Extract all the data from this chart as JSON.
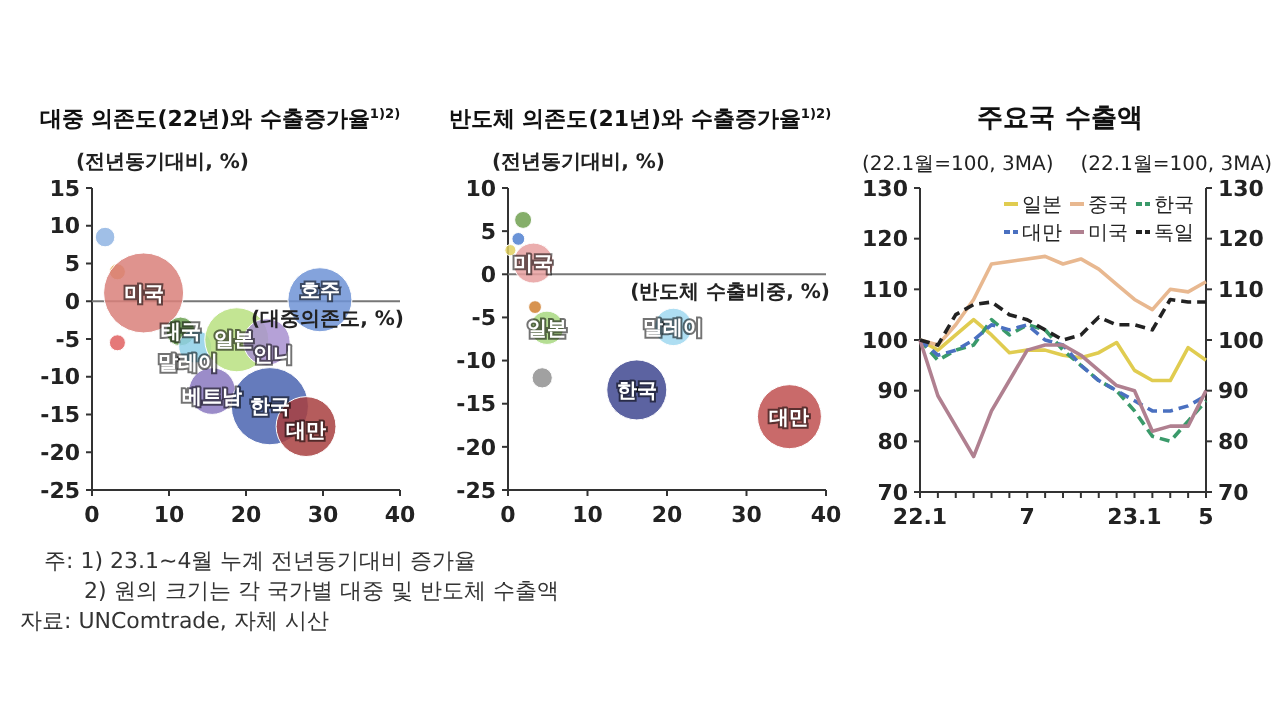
{
  "chart_data": [
    {
      "type": "bubble",
      "title": "대중 의존도(22년)와 수출증가율$^{1)2)}$",
      "ylabel": "(전년동기대비, %)",
      "xlabel": "(대중의존도, %)",
      "xlim": [
        0,
        40
      ],
      "xticks": [
        0,
        10,
        20,
        30,
        40
      ],
      "ylim": [
        -25,
        15
      ],
      "yticks": [
        15,
        10,
        5,
        0,
        -5,
        -10,
        -15,
        -20,
        -25
      ],
      "ref_lines": [
        {
          "axis": "y",
          "value": 0,
          "color": "#777777"
        }
      ],
      "series": [
        {
          "x": [
            1.7,
            3.3,
            6.7,
            3.3,
            11.5,
            13.4,
            18.8,
            22.7,
            29.6,
            15.6,
            23.1,
            27.8
          ],
          "values": [
            8.5,
            3.9,
            1.1,
            -5.5,
            -4,
            -6,
            -5.1,
            -5.4,
            0.2,
            -11.9,
            -13.9,
            -16.6
          ],
          "sizes": [
            0.06,
            0.04,
            1,
            0.04,
            0.13,
            0.17,
            0.64,
            0.34,
            0.64,
            0.34,
            0.93,
            0.56
          ],
          "colors": [
            "#8fb4e3",
            "#e8a040",
            "#d9807a",
            "#e06060",
            "#6aa050",
            "#8fd0e8",
            "#b8e080",
            "#a890d0",
            "#6f93d6",
            "#8a78c0",
            "#4a64b0",
            "#a84040"
          ]
        }
      ],
      "annotations": [
        {
          "text": "미국",
          "x": 6.7,
          "y": 1.1
        },
        {
          "text": "태국",
          "x": 11.5,
          "y": -4
        },
        {
          "text": "말레이",
          "x": 12.5,
          "y": -8
        },
        {
          "text": "일본",
          "x": 18.5,
          "y": -5
        },
        {
          "text": "인니",
          "x": 23.5,
          "y": -7
        },
        {
          "text": "호주",
          "x": 29.6,
          "y": 1.5
        },
        {
          "text": "베트남",
          "x": 15.6,
          "y": -12.5
        },
        {
          "text": "한국",
          "x": 23.1,
          "y": -13.9
        },
        {
          "text": "대만",
          "x": 27.8,
          "y": -17
        },
        "주: 1) 23.1~4월 누계 전년동기대비 증가율",
        "2) 원의 크기는 각 국가별 대중 및 반도체 수출액",
        "자료: UNComtrade, 자체 시산"
      ]
    },
    {
      "type": "bubble",
      "title": "반도체 의존도(21년)와 수출증가율$^{1)2)}$",
      "ylabel": "(전년동기대비, %)",
      "xlabel": "(반도체 수출비중, %)",
      "xlim": [
        0,
        40
      ],
      "xticks": [
        0,
        10,
        20,
        30,
        40
      ],
      "ylim": [
        -25,
        10
      ],
      "yticks": [
        10,
        5,
        0,
        -5,
        -10,
        -15,
        -20,
        -25
      ],
      "ref_lines": [
        {
          "axis": "y",
          "value": 0,
          "color": "#777777"
        }
      ],
      "series": [
        {
          "x": [
            1.9,
            1.3,
            0.3,
            3.2,
            3.4,
            4.9,
            4.3,
            20.8,
            16.2,
            35.4
          ],
          "values": [
            6.3,
            4.1,
            2.8,
            1.3,
            -3.8,
            -6.2,
            -12,
            -6.1,
            -13.4,
            -16.5
          ],
          "sizes": [
            0.07,
            0.04,
            0.03,
            0.39,
            0.04,
            0.27,
            0.1,
            0.34,
            0.88,
            1
          ],
          "colors": [
            "#70a050",
            "#5080d0",
            "#e0d060",
            "#e8a0a0",
            "#d08030",
            "#a8d880",
            "#909090",
            "#a0d8f0",
            "#404890",
            "#c05050"
          ]
        }
      ],
      "annotations": [
        {
          "text": "미국",
          "x": 3.2,
          "y": 1.3
        },
        {
          "text": "일본",
          "x": 4.9,
          "y": -6.2
        },
        {
          "text": "말레이",
          "x": 20.8,
          "y": -6.1
        },
        {
          "text": "한국",
          "x": 16.2,
          "y": -13.4
        },
        {
          "text": "대만",
          "x": 35.4,
          "y": -16.5
        }
      ]
    },
    {
      "type": "line",
      "title": "주요국 수출액",
      "ylabel": "(22.1월=100, 3MA)",
      "y2label": "(22.1월=100, 3MA)",
      "categories": [
        "22.1",
        null,
        null,
        null,
        null,
        null,
        "7",
        null,
        null,
        null,
        null,
        null,
        "23.1",
        null,
        null,
        null,
        "5"
      ],
      "ylim": [
        70,
        130
      ],
      "yticks": [
        70,
        80,
        90,
        100,
        110,
        120,
        130
      ],
      "y2lim": [
        70,
        130
      ],
      "y2ticks": [
        70,
        80,
        90,
        100,
        110,
        120,
        130
      ],
      "legend": "top right",
      "series": [
        {
          "name": "일본",
          "color": "#e0cc50",
          "line_style": "solid",
          "values": [
            100,
            98,
            101,
            104,
            101,
            97.5,
            98,
            98,
            97,
            96.5,
            97.5,
            99.5,
            94,
            92,
            92,
            98.5,
            96
          ]
        },
        {
          "name": "중국",
          "color": "#e8b890",
          "line_style": "solid",
          "values": [
            100,
            99,
            103,
            108,
            115,
            115.5,
            116,
            116.5,
            115,
            116,
            114,
            111,
            108,
            106,
            110,
            109.5,
            111.5
          ]
        },
        {
          "name": "한국",
          "color": "#3a9a6a",
          "line_style": "dashed",
          "values": [
            100,
            96,
            98,
            99,
            104,
            101,
            103,
            102,
            98,
            95,
            92,
            90,
            86,
            81,
            80,
            84,
            88
          ]
        },
        {
          "name": "대만",
          "color": "#4a70c0",
          "line_style": "dashed",
          "values": [
            100,
            97,
            98,
            100,
            103,
            102,
            103,
            100,
            99,
            95,
            92,
            90,
            88,
            86,
            86,
            87,
            89
          ]
        },
        {
          "name": "미국",
          "color": "#b08090",
          "line_style": "solid",
          "values": [
            100,
            89,
            83,
            77,
            86,
            92,
            98,
            99,
            99,
            97,
            94,
            91,
            90,
            82,
            83,
            83,
            90
          ]
        },
        {
          "name": "독일",
          "color": "#222222",
          "line_style": "dashed",
          "values": [
            100,
            99,
            105,
            107,
            107.5,
            105,
            104,
            102,
            100,
            101,
            104.5,
            103,
            103,
            102,
            108,
            107.5,
            107.5
          ]
        }
      ]
    }
  ]
}
